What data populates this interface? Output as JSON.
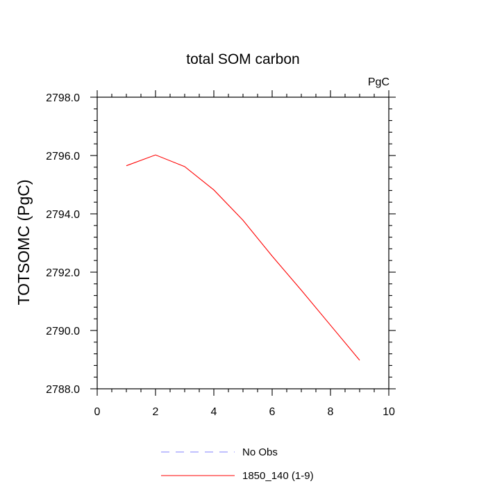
{
  "chart_data": {
    "type": "line",
    "title": "total SOM carbon",
    "units": "PgC",
    "xlabel": "",
    "ylabel": "TOTSOMC  (PgC)",
    "xlim": [
      0,
      10
    ],
    "ylim": [
      2788.0,
      2798.0
    ],
    "x_ticks": [
      0,
      2,
      4,
      6,
      8,
      10
    ],
    "x_tick_labels": [
      "0",
      "2",
      "4",
      "6",
      "8",
      "10"
    ],
    "y_ticks": [
      2788.0,
      2790.0,
      2792.0,
      2794.0,
      2796.0,
      2798.0
    ],
    "y_tick_labels": [
      "2788.0",
      "2790.0",
      "2792.0",
      "2794.0",
      "2796.0",
      "2798.0"
    ],
    "grid": false,
    "legend_position": "bottom-center",
    "series": [
      {
        "name": "No Obs",
        "color": "#8080ff",
        "dash": "dashed",
        "x": [],
        "y": []
      },
      {
        "name": "1850_140 (1-9)",
        "color": "#ff0000",
        "dash": "solid",
        "x": [
          1,
          2,
          3,
          4,
          5,
          6,
          7,
          8,
          9
        ],
        "y": [
          2795.65,
          2796.02,
          2795.62,
          2794.82,
          2793.78,
          2792.55,
          2791.38,
          2790.18,
          2788.98
        ]
      }
    ]
  }
}
